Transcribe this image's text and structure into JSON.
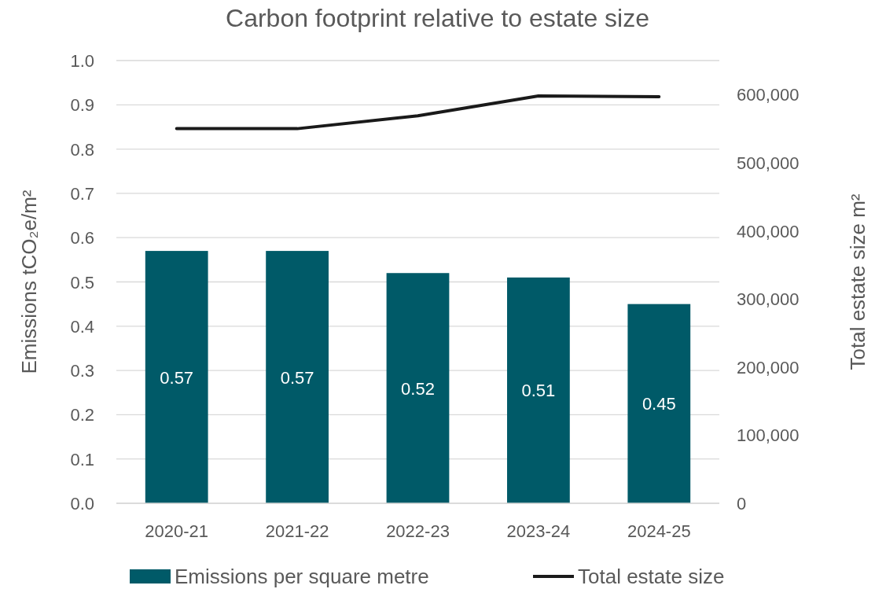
{
  "chart_data": {
    "type": "bar",
    "title": "Carbon footprint relative to estate size",
    "ylabel": "Emissions tCO₂e/m²",
    "y2label": "Total estate size m²",
    "categories": [
      "2020-21",
      "2021-22",
      "2022-23",
      "2023-24",
      "2024-25"
    ],
    "series": [
      {
        "name": "Emissions per square metre",
        "color": "#005a68",
        "values": [
          0.57,
          0.57,
          0.52,
          0.51,
          0.45
        ],
        "value_labels": [
          "0.57",
          "0.57",
          "0.52",
          "0.51",
          "0.45"
        ]
      },
      {
        "name": "Total estate size",
        "type": "line",
        "axis": "y2",
        "color": "#1a1a1a",
        "values": [
          550000,
          550000,
          569000,
          598000,
          597000
        ]
      }
    ],
    "ylim": [
      0,
      1
    ],
    "yticks": [
      {
        "value": 0,
        "label": "0.0"
      },
      {
        "value": 0.1,
        "label": "0.1"
      },
      {
        "value": 0.2,
        "label": "0.2"
      },
      {
        "value": 0.3,
        "label": "0.3"
      },
      {
        "value": 0.4,
        "label": "0.4"
      },
      {
        "value": 0.5,
        "label": "0.5"
      },
      {
        "value": 0.6,
        "label": "0.6"
      },
      {
        "value": 0.7,
        "label": "0.7"
      },
      {
        "value": 0.8,
        "label": "0.8"
      },
      {
        "value": 0.9,
        "label": "0.9"
      },
      {
        "value": 1,
        "label": "1.0"
      }
    ],
    "y2lim": [
      0,
      650000
    ],
    "y2ticks": [
      0,
      {
        "value": 100000,
        "label": "100,000"
      },
      {
        "value": 200000,
        "label": "200,000"
      },
      {
        "value": 300000,
        "label": "300,000"
      },
      {
        "value": 400000,
        "label": "400,000"
      },
      {
        "value": 500000,
        "label": "500,000"
      },
      {
        "value": 600000,
        "label": "600,000"
      }
    ],
    "grid": "y",
    "legend": "bottom",
    "marker": "none",
    "line_style": "solid"
  }
}
